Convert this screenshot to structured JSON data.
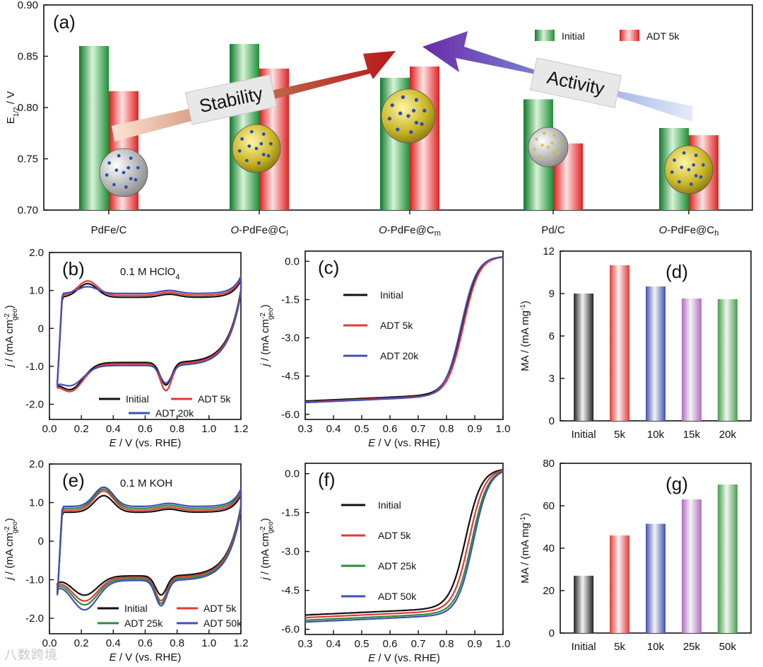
{
  "watermark": "八数跨境",
  "chart_data": [
    {
      "panel": "(a)",
      "type": "bar",
      "ylabel": "E1/2 / V",
      "ylim": [
        0.7,
        0.9
      ],
      "yticks": [
        "0.70",
        "0.75",
        "0.80",
        "0.85",
        "0.90"
      ],
      "categories": [
        "PdFe/C",
        "O-PdFe@Cl",
        "O-PdFe@Cm",
        "Pd/C",
        "O-PdFe@Ch"
      ],
      "series": [
        {
          "name": "Initial",
          "color": "#2e9e3e",
          "values": [
            0.86,
            0.862,
            0.829,
            0.808,
            0.78
          ]
        },
        {
          "name": "ADT 5k",
          "color": "#e23232",
          "values": [
            0.816,
            0.838,
            0.84,
            0.765,
            0.773
          ]
        }
      ],
      "annotations": {
        "stability": "Stability",
        "activity": "Activity"
      }
    },
    {
      "panel": "(b)",
      "type": "line",
      "condition": "0.1 M HClO4",
      "xlabel": "E / V (vs. RHE)",
      "ylabel": "j / (mA cm-2 geo)",
      "xlim": [
        0.0,
        1.2
      ],
      "ylim": [
        -2.4,
        2.0
      ],
      "xticks": [
        "0.0",
        "0.2",
        "0.4",
        "0.6",
        "0.8",
        "1.0",
        "1.2"
      ],
      "yticks": [
        "-2.0",
        "-1.0",
        "0",
        "1.0",
        "2.0"
      ],
      "series": [
        {
          "name": "Initial",
          "color": "#111111",
          "anodic_peak": 1.18,
          "anodic_dl": 0.8,
          "cathodic_dl": -0.87,
          "cathodic_peak": -1.5,
          "hupd": -1.6
        },
        {
          "name": "ADT 5k",
          "color": "#e53935",
          "anodic_peak": 1.25,
          "anodic_dl": 0.85,
          "cathodic_dl": -0.95,
          "cathodic_peak": -1.65,
          "hupd": -1.65
        },
        {
          "name": "ADT 20k",
          "color": "#3f51b5",
          "anodic_peak": 1.1,
          "anodic_dl": 0.88,
          "cathodic_dl": -1.0,
          "cathodic_peak": -1.45,
          "hupd": -1.5
        }
      ]
    },
    {
      "panel": "(c)",
      "type": "line",
      "xlabel": "E / V (vs. RHE)",
      "ylabel": "j / (mA cm-2 geo)",
      "xlim": [
        0.3,
        1.0
      ],
      "ylim": [
        -6.2,
        0.4
      ],
      "xticks": [
        "0.3",
        "0.4",
        "0.5",
        "0.6",
        "0.7",
        "0.8",
        "0.9",
        "1.0"
      ],
      "yticks": [
        "0.0",
        "-1.5",
        "-3.0",
        "-4.5",
        "-6.0"
      ],
      "series": [
        {
          "name": "Initial",
          "color": "#111111",
          "half_wave": 0.855,
          "jlim": -5.68
        },
        {
          "name": "ADT 5k",
          "color": "#e53935",
          "half_wave": 0.86,
          "jlim": -5.72
        },
        {
          "name": "ADT 20k",
          "color": "#3f51b5",
          "half_wave": 0.852,
          "jlim": -5.74
        }
      ]
    },
    {
      "panel": "(d)",
      "type": "bar",
      "ylabel": "MA / (mA mg-1)",
      "ylim": [
        0,
        12
      ],
      "yticks": [
        "0",
        "3",
        "6",
        "9",
        "12"
      ],
      "categories": [
        "Initial",
        "5k",
        "10k",
        "15k",
        "20k"
      ],
      "values": [
        9.0,
        11.0,
        9.5,
        8.65,
        8.6
      ],
      "colors": [
        "#222222",
        "#e53935",
        "#3f51b5",
        "#b26bc2",
        "#43a047"
      ]
    },
    {
      "panel": "(e)",
      "type": "line",
      "condition": "0.1 M KOH",
      "xlabel": "E / V (vs. RHE)",
      "ylabel": "j / (mA cm-2 geo)",
      "xlim": [
        0.0,
        1.2
      ],
      "ylim": [
        -2.4,
        2.0
      ],
      "xticks": [
        "0.0",
        "0.2",
        "0.4",
        "0.6",
        "0.8",
        "1.0",
        "1.2"
      ],
      "yticks": [
        "-2.0",
        "-1.0",
        "0",
        "1.0",
        "2.0"
      ],
      "series": [
        {
          "name": "Initial",
          "color": "#111111",
          "anodic_peak": 1.18,
          "cathodic_peak": -1.4,
          "hupd": -1.4
        },
        {
          "name": "ADT 5k",
          "color": "#e53935",
          "anodic_peak": 1.3,
          "cathodic_peak": -1.55,
          "hupd": -1.55
        },
        {
          "name": "ADT 25k",
          "color": "#2e8b3e",
          "anodic_peak": 1.35,
          "cathodic_peak": -1.62,
          "hupd": -1.65
        },
        {
          "name": "ADT 50k",
          "color": "#3f51b5",
          "anodic_peak": 1.4,
          "cathodic_peak": -1.68,
          "hupd": -1.78
        }
      ]
    },
    {
      "panel": "(f)",
      "type": "line",
      "xlabel": "E / V (vs. RHE)",
      "ylabel": "j / (mA cm-2 geo)",
      "xlim": [
        0.3,
        1.0
      ],
      "ylim": [
        -6.2,
        0.4
      ],
      "xticks": [
        "0.3",
        "0.4",
        "0.5",
        "0.6",
        "0.7",
        "0.8",
        "0.9",
        "1.0"
      ],
      "yticks": [
        "0.0",
        "-1.5",
        "-3.0",
        "-4.5",
        "-6.0"
      ],
      "series": [
        {
          "name": "Initial",
          "color": "#111111",
          "half_wave": 0.868,
          "jlim": -5.65
        },
        {
          "name": "ADT 5k",
          "color": "#e53935",
          "half_wave": 0.88,
          "jlim": -5.75
        },
        {
          "name": "ADT 25k",
          "color": "#2e8b3e",
          "half_wave": 0.89,
          "jlim": -5.85
        },
        {
          "name": "ADT 50k",
          "color": "#3f51b5",
          "half_wave": 0.895,
          "jlim": -5.92
        }
      ]
    },
    {
      "panel": "(g)",
      "type": "bar",
      "ylabel": "MA / (mA mg-1)",
      "ylim": [
        0,
        80
      ],
      "yticks": [
        "0",
        "20",
        "40",
        "60",
        "80"
      ],
      "categories": [
        "Initial",
        "5k",
        "10k",
        "25k",
        "50k"
      ],
      "values": [
        27,
        46,
        51.5,
        63,
        70
      ],
      "colors": [
        "#222222",
        "#e53935",
        "#3f51b5",
        "#b26bc2",
        "#43a047"
      ]
    }
  ]
}
